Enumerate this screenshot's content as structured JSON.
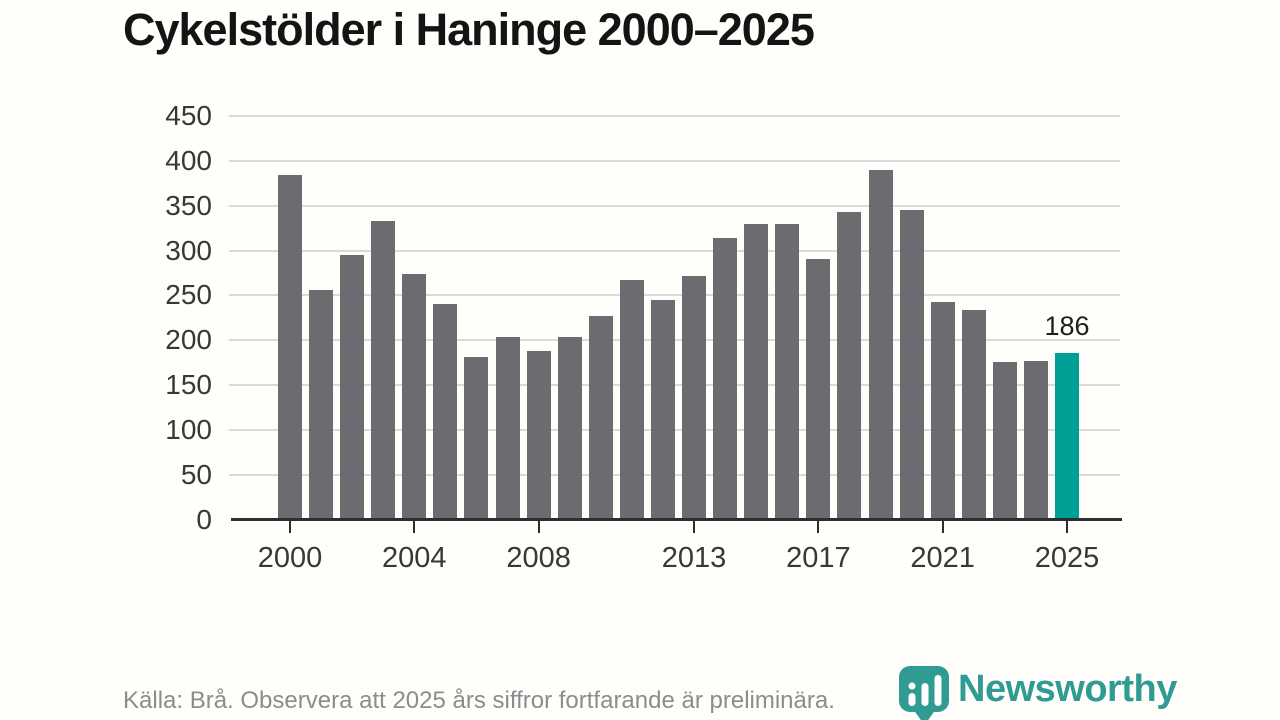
{
  "page": {
    "background": "#fffefa"
  },
  "header": {
    "title": "Cykelstölder i Haninge 2000–2025"
  },
  "footer": {
    "source_note": "Källa: Brå. Observera att 2025 års siffror fortfarande är preliminära.",
    "brand": {
      "wordmark": "Newsworthy",
      "icon": "newsworthy-pin-chart-icon"
    }
  },
  "colors": {
    "bar": "#6b6b70",
    "bar_highlight": "#00a096",
    "axis": "#2e2e2e",
    "gridline": "#dadada",
    "tick_label": "#38383a",
    "title": "#141414",
    "source_text": "#8c8c8e",
    "brand_teal": "#2f9b93",
    "annotation_text": "#1f1f1f"
  },
  "chart_data": {
    "type": "bar",
    "title": "Cykelstölder i Haninge 2000–2025",
    "categories": [
      2000,
      2001,
      2002,
      2003,
      2004,
      2005,
      2006,
      2007,
      2008,
      2009,
      2010,
      2011,
      2012,
      2013,
      2014,
      2015,
      2016,
      2017,
      2018,
      2019,
      2020,
      2021,
      2022,
      2023,
      2024,
      2025
    ],
    "values": [
      384,
      256,
      295,
      333,
      274,
      240,
      181,
      204,
      188,
      204,
      227,
      267,
      245,
      272,
      314,
      330,
      330,
      290,
      343,
      390,
      345,
      243,
      234,
      176,
      177,
      186
    ],
    "highlight_category": 2025,
    "annotation": {
      "category": 2025,
      "text": "186"
    },
    "x_tick_labels": [
      "2000",
      "2004",
      "2008",
      "2013",
      "2017",
      "2021",
      "2025"
    ],
    "y_ticks": [
      0,
      50,
      100,
      150,
      200,
      250,
      300,
      350,
      400,
      450
    ],
    "ylim": [
      0,
      450
    ],
    "legend": "none",
    "grid": "horizontal"
  }
}
